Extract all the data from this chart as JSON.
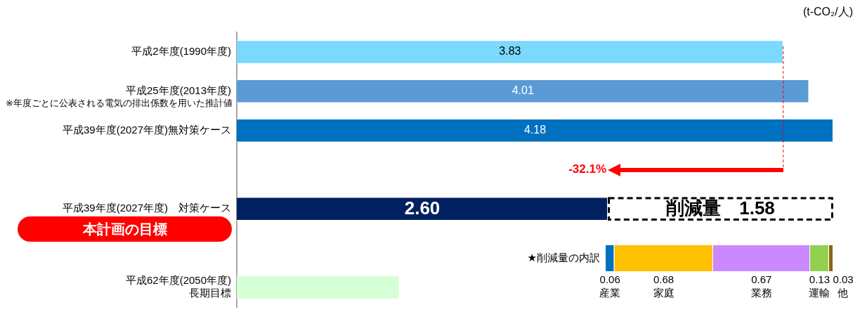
{
  "chart_data": [
    {
      "type": "bar",
      "orientation": "horizontal",
      "stacked": true,
      "xlabel": "(t-CO₂/人)",
      "categories": [
        "平成2年度(1990年度)",
        "平成25年度(2013年度)",
        "平成39年度(2027年度)無対策ケース",
        null,
        "平成39年度(2027年度)　対策ケース",
        null,
        "平成62年度(2050年度)\n長期目標"
      ],
      "xlim": [
        0,
        4.2
      ],
      "series": [
        {
          "colors": [
            "#7ad9fc",
            "#5b9bd5",
            "#0070c0",
            null,
            "#002060",
            null,
            "#d5ffd5"
          ],
          "values": [
            3.83,
            4.01,
            4.18,
            null,
            2.6,
            null,
            1.14
          ],
          "value_labels": [
            "3.83",
            "4.01",
            "4.18",
            null,
            "2.60",
            null,
            null
          ]
        },
        {
          "color": "#ffffff",
          "line_style": "dashed",
          "values": [
            null,
            null,
            null,
            null,
            1.58,
            null,
            null
          ],
          "value_labels": [
            null,
            null,
            null,
            null,
            "削減量　1.58",
            null,
            null
          ]
        }
      ],
      "ref_lines": [
        {
          "axis": "x",
          "value": 3.83,
          "color": "#ff0000",
          "line_style": "dashed"
        }
      ],
      "annotations": [
        "※年度ごとに公表される電気の排出係数を用いた推計値",
        "-32.1%",
        "本計画の目標"
      ]
    },
    {
      "type": "bar",
      "orientation": "horizontal",
      "stacked": true,
      "data_labels": true,
      "categories": [
        "★削減量の内訳"
      ],
      "series": [
        {
          "name": "産業",
          "color": "#0070c0",
          "values": [
            0.06
          ]
        },
        {
          "name": "家庭",
          "color": "#ffc000",
          "values": [
            0.68
          ]
        },
        {
          "name": "業務",
          "color": "#cc88ff",
          "values": [
            0.67
          ]
        },
        {
          "name": "運輸",
          "color": "#92d050",
          "values": [
            0.13
          ]
        },
        {
          "name": "他",
          "color": "#8b6914",
          "values": [
            0.03
          ]
        }
      ]
    }
  ]
}
